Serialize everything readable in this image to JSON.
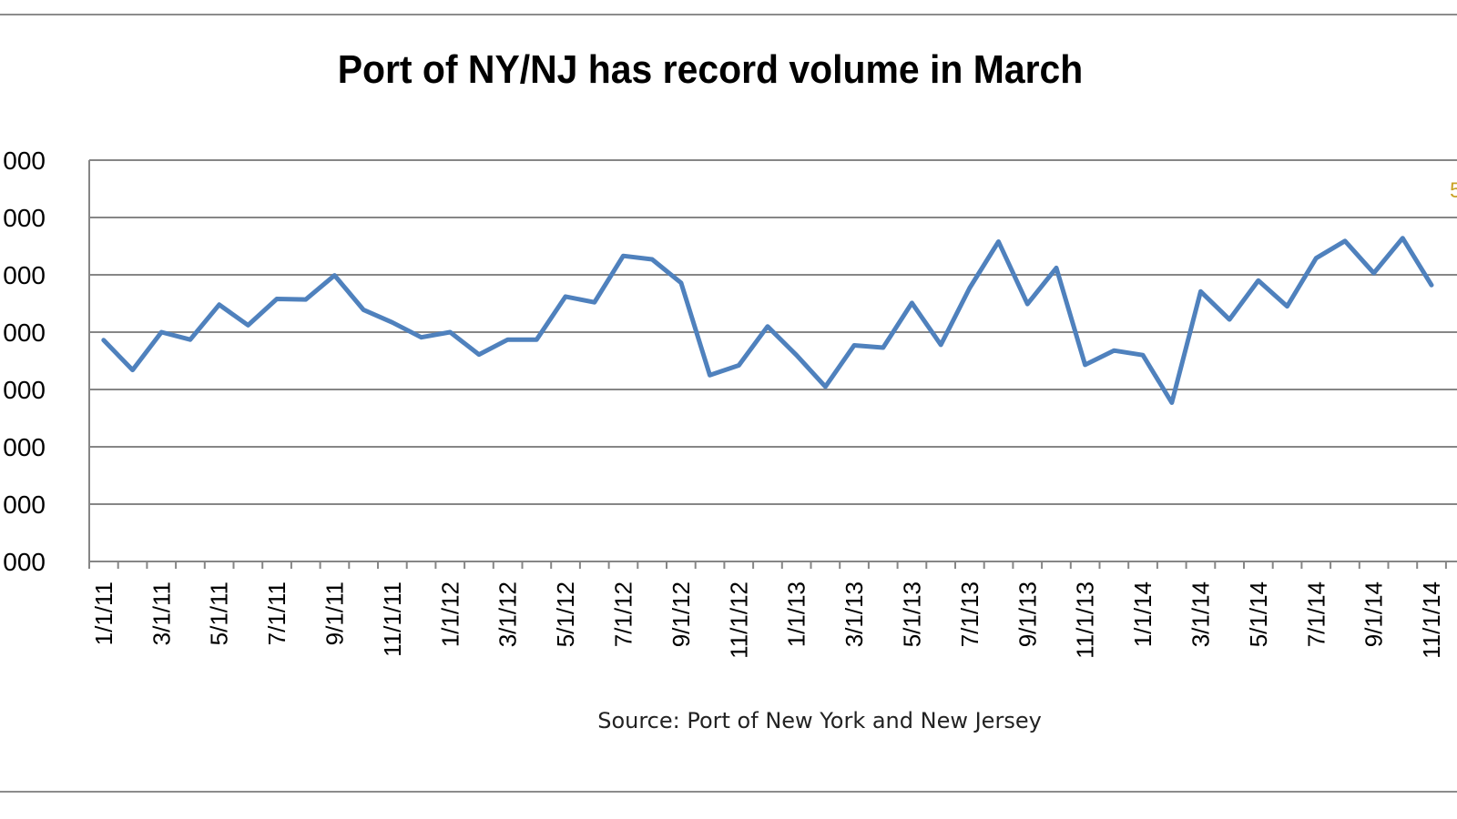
{
  "chart_data": {
    "type": "line",
    "title": "Port of NY/NJ has record volume in March",
    "source": "Source: Port of New York and New Jersey",
    "y_tick_labels": [
      "000",
      "000",
      "000",
      "000",
      "000",
      "000",
      "000",
      "000"
    ],
    "x_tick_labels": [
      "1/1/11",
      "3/1/11",
      "5/1/11",
      "7/1/11",
      "9/1/11",
      "11/1/11",
      "1/1/12",
      "3/1/12",
      "5/1/12",
      "7/1/12",
      "9/1/12",
      "11/1/12",
      "1/1/13",
      "3/1/13",
      "5/1/13",
      "7/1/13",
      "9/1/13",
      "11/1/13",
      "1/1/14",
      "3/1/14",
      "5/1/14",
      "7/1/14",
      "9/1/14",
      "11/1/14"
    ],
    "visible_partial_label": "5",
    "grid": true,
    "legend": "none",
    "series": [
      {
        "color": "#4F81BD",
        "x": [
          "1/1/11",
          "2/1/11",
          "3/1/11",
          "4/1/11",
          "5/1/11",
          "6/1/11",
          "7/1/11",
          "8/1/11",
          "9/1/11",
          "10/1/11",
          "11/1/11",
          "12/1/11",
          "1/1/12",
          "2/1/12",
          "3/1/12",
          "4/1/12",
          "5/1/12",
          "6/1/12",
          "7/1/12",
          "8/1/12",
          "9/1/12",
          "10/1/12",
          "11/1/12",
          "12/1/12",
          "1/1/13",
          "2/1/13",
          "3/1/13",
          "4/1/13",
          "5/1/13",
          "6/1/13",
          "7/1/13",
          "8/1/13",
          "9/1/13",
          "10/1/13",
          "11/1/13",
          "12/1/13",
          "1/1/14",
          "2/1/14",
          "3/1/14",
          "4/1/14",
          "5/1/14",
          "6/1/14",
          "7/1/14",
          "8/1/14",
          "9/1/14",
          "10/1/14",
          "11/1/14"
        ],
        "values": [
          3.86,
          3.34,
          4.0,
          3.87,
          4.48,
          4.12,
          4.58,
          4.57,
          4.99,
          4.39,
          4.17,
          3.91,
          4.0,
          3.61,
          3.87,
          3.87,
          4.62,
          4.52,
          5.33,
          5.27,
          4.86,
          3.25,
          3.42,
          4.1,
          3.6,
          3.05,
          3.77,
          3.73,
          4.51,
          3.78,
          4.77,
          5.58,
          4.49,
          5.12,
          3.43,
          3.68,
          3.6,
          2.77,
          4.71,
          4.22,
          4.9,
          4.45,
          5.29,
          5.59,
          5.03,
          5.64,
          4.82
        ]
      }
    ]
  }
}
